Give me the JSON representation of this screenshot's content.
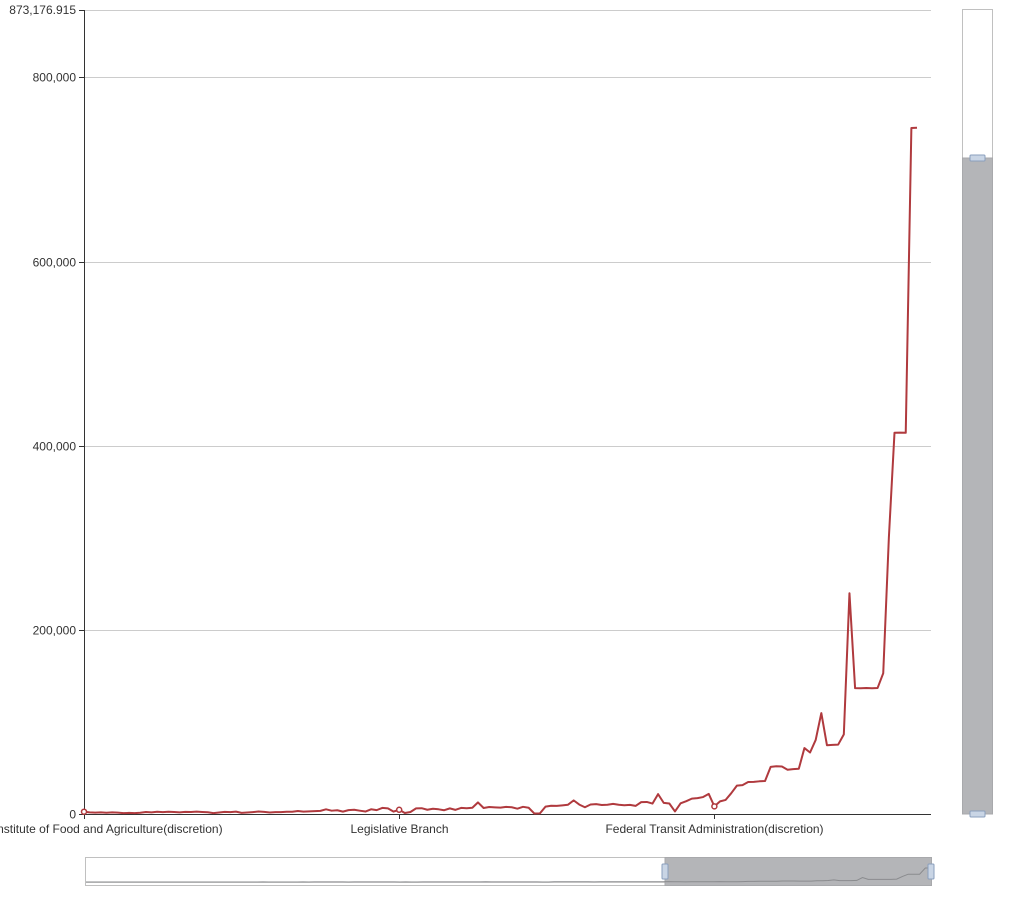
{
  "chart_data": {
    "type": "line",
    "title": "",
    "xlabel": "",
    "ylabel": "",
    "ylim": [
      0,
      873176.915
    ],
    "y_max_label": "873,176.915",
    "y_ticks": [
      0,
      200000,
      400000,
      600000,
      800000
    ],
    "y_tick_labels": [
      "0",
      "200,000",
      "400,000",
      "600,000",
      "800,000"
    ],
    "x_axis_labels": [
      {
        "label": "National Institute of Food and Agriculture(discretion)",
        "index": 0
      },
      {
        "label": "Legislative Branch",
        "index": 56
      },
      {
        "label": "Federal Transit Administration(discretion)",
        "index": 112
      }
    ],
    "grid": true,
    "series": [
      {
        "color": "#b03a3e",
        "values": [
          2500,
          1800,
          1500,
          1700,
          1400,
          1800,
          1500,
          900,
          1200,
          1000,
          1300,
          2200,
          1800,
          2400,
          2100,
          2500,
          2200,
          1800,
          2300,
          2200,
          2600,
          2200,
          1900,
          1000,
          1600,
          2300,
          2000,
          2600,
          1200,
          1600,
          2100,
          2700,
          2300,
          1600,
          2100,
          2000,
          2500,
          2400,
          3200,
          2600,
          2800,
          3100,
          3400,
          5100,
          3600,
          4100,
          2600,
          4200,
          4600,
          3600,
          2700,
          5100,
          4200,
          6600,
          6100,
          2600,
          4600,
          1100,
          2200,
          6100,
          6300,
          4600,
          5700,
          5100,
          4100,
          6100,
          4500,
          6600,
          6200,
          6800,
          12600,
          6500,
          7600,
          7200,
          6900,
          7700,
          7300,
          5800,
          7800,
          6800,
          600,
          700,
          8000,
          9000,
          8800,
          9400,
          10100,
          14800,
          10200,
          7300,
          10300,
          10700,
          9800,
          10100,
          11000,
          10100,
          9500,
          9900,
          8800,
          12900,
          13100,
          11300,
          21600,
          12100,
          11400,
          2800,
          11600,
          13900,
          16700,
          17200,
          18400,
          21800,
          8300,
          13700,
          15300,
          22600,
          30800,
          31400,
          34800,
          34900,
          35500,
          35800,
          51200,
          51900,
          51600,
          48100,
          48800,
          49100,
          71600,
          66800,
          80400,
          109600,
          74700,
          75100,
          75400,
          86500,
          239800,
          136700,
          136600,
          136800,
          136500,
          136900,
          152900,
          300000,
          414000,
          414200,
          414000,
          745000,
          745300
        ],
        "markers": [
          0,
          56,
          112
        ]
      }
    ]
  }
}
